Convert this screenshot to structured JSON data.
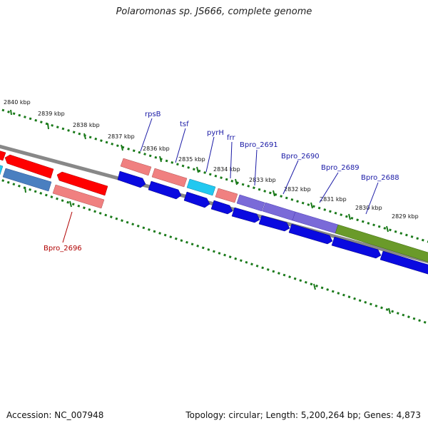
{
  "title": "Polaromonas sp. JS666, complete genome",
  "accession_text": "Accession: NC_007948",
  "stats_text": "Topology: circular; Length: 5,200,264 bp; Genes: 4,873",
  "ticks": [
    "2840 kbp",
    "2839 kbp",
    "2838 kbp",
    "2837 kbp",
    "2836 kbp",
    "2835 kbp",
    "2834 kbp",
    "2833 kbp",
    "2832 kbp",
    "2831 kbp",
    "2830 kbp",
    "2829 kbp"
  ],
  "gene_labels": [
    "rpsB",
    "tsf",
    "pyrH",
    "frr",
    "Bpro_2691",
    "Bpro_2690",
    "Bpro_2689",
    "Bpro_2688",
    "Bpro_2696"
  ],
  "colors": {
    "forward_cds": "#0a0ae0",
    "reverse_cds": "#ff0000",
    "rrna_pink": "#f08080",
    "cyan": "#22c8f0",
    "steelblue": "#4a7fc0",
    "purple": "#7a6ad8",
    "olive": "#6a9a2a",
    "backbone": "#888888",
    "tick_dots": "#1a7a1a",
    "fwd_label": "#1a1aa6",
    "rev_label": "#b00000"
  }
}
